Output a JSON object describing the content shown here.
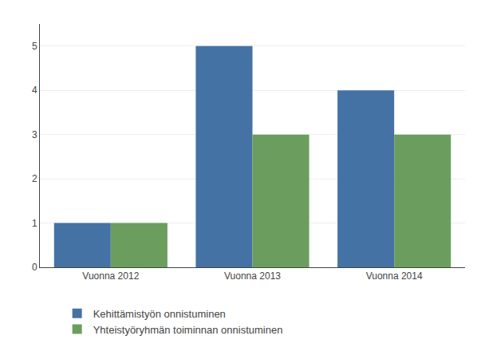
{
  "chart_data": {
    "type": "bar",
    "categories": [
      "Vuonna 2012",
      "Vuonna 2013",
      "Vuonna 2014"
    ],
    "series": [
      {
        "name": "Kehittämistyön onnistuminen",
        "color": "#4472A4",
        "values": [
          1,
          5,
          4
        ]
      },
      {
        "name": "Yhteistyöryhmän toiminnan onnistuminen",
        "color": "#6B9E5E",
        "values": [
          1,
          3,
          3
        ]
      }
    ],
    "ylim": [
      0,
      5.5
    ],
    "yticks": [
      0,
      1,
      2,
      3,
      4,
      5
    ],
    "grid": true,
    "legend": "bottom"
  }
}
